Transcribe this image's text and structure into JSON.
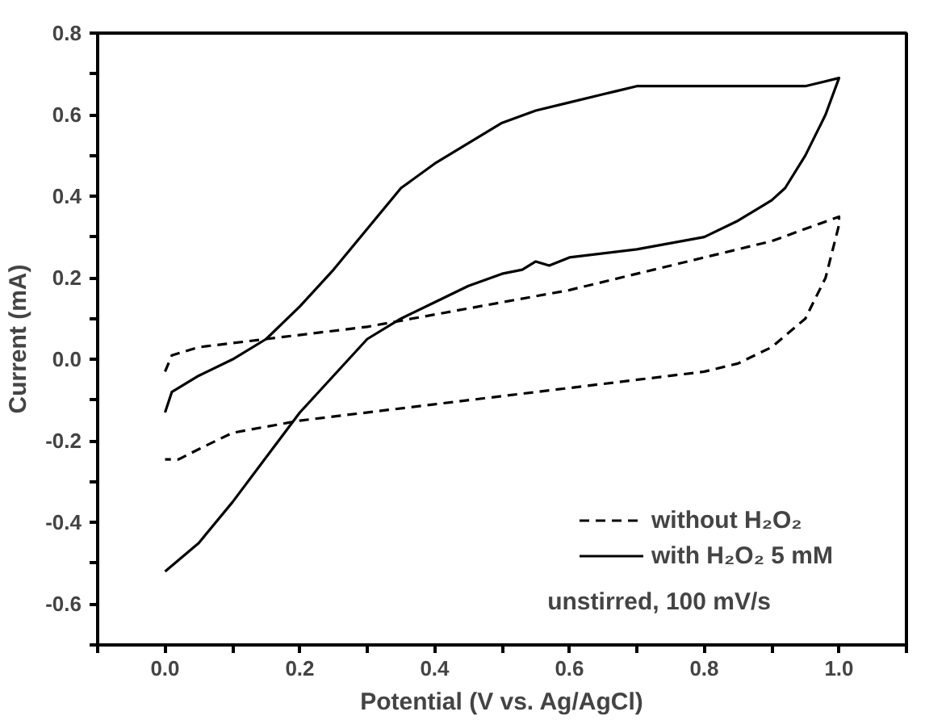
{
  "chart_data": {
    "type": "line",
    "xlabel": "Potential (V vs. Ag/AgCl)",
    "ylabel": "Current (mA)",
    "xlim": [
      -0.1,
      1.1
    ],
    "ylim": [
      -0.7,
      0.8
    ],
    "xticks": [
      {
        "value": -0.1,
        "label": null
      },
      {
        "value": 0,
        "label": "0.0"
      },
      {
        "value": 0.1,
        "label": null
      },
      0.2,
      {
        "value": 0.3,
        "label": null
      },
      0.4,
      {
        "value": 0.5,
        "label": null
      },
      0.6,
      {
        "value": 0.7,
        "label": null
      },
      0.8,
      {
        "value": 0.9,
        "label": null
      },
      {
        "value": 1,
        "label": "1.0"
      },
      {
        "value": 1.1,
        "label": null
      }
    ],
    "yticks": [
      {
        "value": -0.7,
        "label": null
      },
      -0.6,
      {
        "value": -0.5,
        "label": null
      },
      -0.4,
      {
        "value": -0.3,
        "label": null
      },
      -0.2,
      {
        "value": -0.1,
        "label": null
      },
      {
        "value": 0,
        "label": "0.0"
      },
      {
        "value": 0.1,
        "label": null
      },
      0.2,
      {
        "value": 0.3,
        "label": null
      },
      0.4,
      {
        "value": 0.5,
        "label": null
      },
      0.6,
      {
        "value": 0.7,
        "label": null
      },
      0.8
    ],
    "grid": false,
    "legend": "bottom right",
    "marker": "none",
    "annotations": [
      "unstirred, 100 mV/s"
    ],
    "series": [
      {
        "name": "without H₂O₂",
        "color": "#000000",
        "line_style": "dashed",
        "x": [
          0.0,
          0.01,
          0.05,
          0.15,
          0.3,
          0.4,
          0.5,
          0.6,
          0.7,
          0.8,
          0.9,
          1.0,
          1.0,
          0.98,
          0.95,
          0.9,
          0.85,
          0.8,
          0.6,
          0.4,
          0.2,
          0.1,
          0.05,
          0.02,
          0.0
        ],
        "values": [
          -0.03,
          0.01,
          0.03,
          0.05,
          0.08,
          0.11,
          0.14,
          0.17,
          0.21,
          0.25,
          0.29,
          0.35,
          0.33,
          0.2,
          0.1,
          0.03,
          -0.01,
          -0.03,
          -0.07,
          -0.11,
          -0.15,
          -0.18,
          -0.22,
          -0.245,
          -0.245
        ]
      },
      {
        "name": "with H₂O₂ 5 mM",
        "color": "#000000",
        "line_style": "solid",
        "x": [
          0.0,
          0.01,
          0.05,
          0.1,
          0.15,
          0.2,
          0.25,
          0.3,
          0.35,
          0.4,
          0.45,
          0.5,
          0.55,
          0.6,
          0.65,
          0.7,
          0.8,
          0.9,
          0.95,
          1.0,
          0.98,
          0.95,
          0.92,
          0.9,
          0.85,
          0.8,
          0.7,
          0.6,
          0.57,
          0.55,
          0.53,
          0.5,
          0.45,
          0.4,
          0.35,
          0.3,
          0.25,
          0.2,
          0.15,
          0.1,
          0.05,
          0.0
        ],
        "values": [
          -0.13,
          -0.08,
          -0.04,
          0.0,
          0.05,
          0.13,
          0.22,
          0.32,
          0.42,
          0.48,
          0.53,
          0.58,
          0.61,
          0.63,
          0.65,
          0.67,
          0.67,
          0.67,
          0.67,
          0.69,
          0.6,
          0.5,
          0.42,
          0.39,
          0.34,
          0.3,
          0.27,
          0.25,
          0.23,
          0.24,
          0.22,
          0.21,
          0.18,
          0.14,
          0.1,
          0.05,
          -0.04,
          -0.13,
          -0.24,
          -0.35,
          -0.45,
          -0.52
        ]
      }
    ]
  }
}
